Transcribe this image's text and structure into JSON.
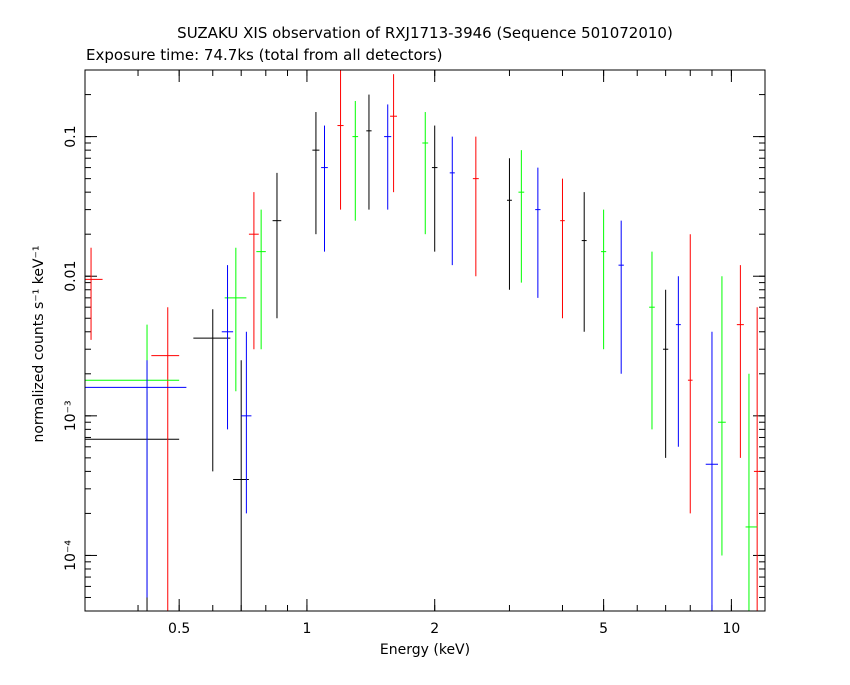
{
  "chart_data": {
    "type": "scatter",
    "title": "SUZAKU XIS observation of RXJ1713-3946 (Sequence 501072010)",
    "subtitle": "Exposure time: 74.7ks (total from all detectors)",
    "xlabel": "Energy (keV)",
    "ylabel": "normalized counts s⁻¹ keV⁻¹",
    "x_scale": "log",
    "y_scale": "log",
    "xlim": [
      0.3,
      12
    ],
    "ylim": [
      4e-05,
      0.3
    ],
    "x_ticks": [
      {
        "value": 0.5,
        "label": "0.5"
      },
      {
        "value": 1,
        "label": "1"
      },
      {
        "value": 2,
        "label": "2"
      },
      {
        "value": 5,
        "label": "5"
      },
      {
        "value": 10,
        "label": "10"
      }
    ],
    "y_ticks": [
      {
        "value": 0.0001,
        "label": "10⁻⁴"
      },
      {
        "value": 0.001,
        "label": "10⁻³"
      },
      {
        "value": 0.01,
        "label": "0.01"
      },
      {
        "value": 0.1,
        "label": "0.1"
      }
    ],
    "grid": false,
    "legend": "none",
    "series": [
      {
        "color": "#000000",
        "points": [
          {
            "x": 0.42,
            "xerr": [
              0.3,
              0.5
            ],
            "y": 0.00068,
            "yerr": [
              4e-05,
              0.0015
            ]
          },
          {
            "x": 0.6,
            "xerr": [
              0.54,
              0.66
            ],
            "y": 0.0036,
            "yerr": [
              0.0004,
              0.0058
            ]
          },
          {
            "x": 0.7,
            "xerr": [
              0.67,
              0.73
            ],
            "y": 0.00035,
            "yerr": [
              4e-05,
              0.0025
            ]
          },
          {
            "x": 0.85,
            "xerr": [
              0.83,
              0.87
            ],
            "y": 0.025,
            "yerr": [
              0.005,
              0.055
            ]
          },
          {
            "x": 1.05,
            "xerr": [
              1.03,
              1.07
            ],
            "y": 0.08,
            "yerr": [
              0.02,
              0.15
            ]
          },
          {
            "x": 1.4,
            "xerr": [
              1.38,
              1.42
            ],
            "y": 0.11,
            "yerr": [
              0.03,
              0.2
            ]
          },
          {
            "x": 2.0,
            "xerr": [
              1.97,
              2.03
            ],
            "y": 0.06,
            "yerr": [
              0.015,
              0.12
            ]
          },
          {
            "x": 3.0,
            "xerr": [
              2.96,
              3.04
            ],
            "y": 0.035,
            "yerr": [
              0.008,
              0.07
            ]
          },
          {
            "x": 4.5,
            "xerr": [
              4.44,
              4.56
            ],
            "y": 0.018,
            "yerr": [
              0.004,
              0.04
            ]
          },
          {
            "x": 7.0,
            "xerr": [
              6.9,
              7.1
            ],
            "y": 0.003,
            "yerr": [
              0.0005,
              0.008
            ]
          }
        ]
      },
      {
        "color": "#ff0000",
        "points": [
          {
            "x": 0.31,
            "xerr": [
              0.3,
              0.33
            ],
            "y": 0.0095,
            "yerr": [
              0.0035,
              0.016
            ]
          },
          {
            "x": 0.47,
            "xerr": [
              0.43,
              0.5
            ],
            "y": 0.0027,
            "yerr": [
              4e-05,
              0.006
            ]
          },
          {
            "x": 0.75,
            "xerr": [
              0.73,
              0.77
            ],
            "y": 0.02,
            "yerr": [
              0.003,
              0.04
            ]
          },
          {
            "x": 1.2,
            "xerr": [
              1.18,
              1.22
            ],
            "y": 0.12,
            "yerr": [
              0.03,
              0.3
            ]
          },
          {
            "x": 1.6,
            "xerr": [
              1.57,
              1.63
            ],
            "y": 0.14,
            "yerr": [
              0.04,
              0.28
            ]
          },
          {
            "x": 2.5,
            "xerr": [
              2.46,
              2.54
            ],
            "y": 0.05,
            "yerr": [
              0.01,
              0.1
            ]
          },
          {
            "x": 4.0,
            "xerr": [
              3.95,
              4.05
            ],
            "y": 0.025,
            "yerr": [
              0.005,
              0.05
            ]
          },
          {
            "x": 8.0,
            "xerr": [
              7.9,
              8.1
            ],
            "y": 0.0018,
            "yerr": [
              0.0002,
              0.02
            ]
          },
          {
            "x": 10.5,
            "xerr": [
              10.3,
              10.7
            ],
            "y": 0.0045,
            "yerr": [
              0.0005,
              0.012
            ]
          },
          {
            "x": 11.5,
            "xerr": [
              11.3,
              11.7
            ],
            "y": 0.0004,
            "yerr": [
              4e-05,
              0.006
            ]
          }
        ]
      },
      {
        "color": "#00ff00",
        "points": [
          {
            "x": 0.42,
            "xerr": [
              0.3,
              0.5
            ],
            "y": 0.0018,
            "yerr": [
              0.0004,
              0.0045
            ]
          },
          {
            "x": 0.68,
            "xerr": [
              0.64,
              0.72
            ],
            "y": 0.007,
            "yerr": [
              0.0015,
              0.016
            ]
          },
          {
            "x": 0.78,
            "xerr": [
              0.76,
              0.8
            ],
            "y": 0.015,
            "yerr": [
              0.003,
              0.03
            ]
          },
          {
            "x": 1.3,
            "xerr": [
              1.28,
              1.32
            ],
            "y": 0.1,
            "yerr": [
              0.025,
              0.18
            ]
          },
          {
            "x": 1.9,
            "xerr": [
              1.87,
              1.93
            ],
            "y": 0.09,
            "yerr": [
              0.02,
              0.15
            ]
          },
          {
            "x": 3.2,
            "xerr": [
              3.15,
              3.25
            ],
            "y": 0.04,
            "yerr": [
              0.009,
              0.08
            ]
          },
          {
            "x": 5.0,
            "xerr": [
              4.93,
              5.07
            ],
            "y": 0.015,
            "yerr": [
              0.003,
              0.03
            ]
          },
          {
            "x": 6.5,
            "xerr": [
              6.4,
              6.6
            ],
            "y": 0.006,
            "yerr": [
              0.0008,
              0.015
            ]
          },
          {
            "x": 9.5,
            "xerr": [
              9.3,
              9.7
            ],
            "y": 0.0009,
            "yerr": [
              0.0001,
              0.01
            ]
          },
          {
            "x": 11.0,
            "xerr": [
              10.8,
              11.5
            ],
            "y": 0.00016,
            "yerr": [
              4e-05,
              0.002
            ]
          }
        ]
      },
      {
        "color": "#0000ff",
        "points": [
          {
            "x": 0.42,
            "xerr": [
              0.3,
              0.52
            ],
            "y": 0.0016,
            "yerr": [
              5e-05,
              0.0025
            ]
          },
          {
            "x": 0.65,
            "xerr": [
              0.63,
              0.67
            ],
            "y": 0.004,
            "yerr": [
              0.0008,
              0.012
            ]
          },
          {
            "x": 0.72,
            "xerr": [
              0.7,
              0.74
            ],
            "y": 0.001,
            "yerr": [
              0.0002,
              0.004
            ]
          },
          {
            "x": 1.1,
            "xerr": [
              1.08,
              1.12
            ],
            "y": 0.06,
            "yerr": [
              0.015,
              0.12
            ]
          },
          {
            "x": 1.55,
            "xerr": [
              1.52,
              1.58
            ],
            "y": 0.1,
            "yerr": [
              0.03,
              0.17
            ]
          },
          {
            "x": 2.2,
            "xerr": [
              2.17,
              2.23
            ],
            "y": 0.055,
            "yerr": [
              0.012,
              0.1
            ]
          },
          {
            "x": 3.5,
            "xerr": [
              3.45,
              3.55
            ],
            "y": 0.03,
            "yerr": [
              0.007,
              0.06
            ]
          },
          {
            "x": 5.5,
            "xerr": [
              5.42,
              5.58
            ],
            "y": 0.012,
            "yerr": [
              0.002,
              0.025
            ]
          },
          {
            "x": 7.5,
            "xerr": [
              7.4,
              7.6
            ],
            "y": 0.0045,
            "yerr": [
              0.0006,
              0.01
            ]
          },
          {
            "x": 9.0,
            "xerr": [
              8.7,
              9.3
            ],
            "y": 0.00045,
            "yerr": [
              4e-05,
              0.004
            ]
          }
        ]
      }
    ]
  }
}
